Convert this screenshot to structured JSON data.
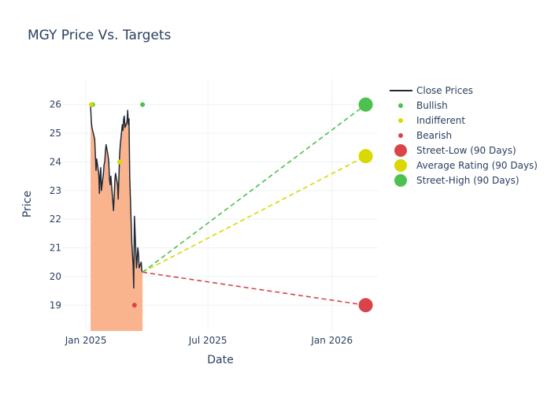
{
  "chart_data": {
    "type": "line",
    "title": "MGY Price Vs. Targets",
    "xlabel": "Date",
    "ylabel": "Price",
    "xlim": [
      "2024-11-28",
      "2026-03-10"
    ],
    "ylim": [
      18.1,
      26.9
    ],
    "x_ticks": [
      {
        "label": "Jan 2025",
        "date": "2025-01-01"
      },
      {
        "label": "Jul 2025",
        "date": "2025-07-01"
      },
      {
        "label": "Jan 2026",
        "date": "2026-01-01"
      }
    ],
    "y_ticks": [
      19,
      20,
      21,
      22,
      23,
      24,
      25,
      26
    ],
    "grid": true,
    "legend_position": "top-right",
    "colors": {
      "close": "#1f2a38",
      "area": "#f9b48e",
      "bullish": "#4cc150",
      "indifferent": "#d9d900",
      "bearish": "#d9444b",
      "street_low": "#d9444b",
      "average": "#d9d900",
      "street_high": "#4cc150"
    },
    "series": [
      {
        "name": "Close Prices",
        "points": [
          [
            "2025-01-08",
            25.95
          ],
          [
            "2025-01-09",
            25.4
          ],
          [
            "2025-01-10",
            25.2
          ],
          [
            "2025-01-13",
            24.9
          ],
          [
            "2025-01-14",
            24.8
          ],
          [
            "2025-01-15",
            24.3
          ],
          [
            "2025-01-16",
            23.7
          ],
          [
            "2025-01-17",
            24.1
          ],
          [
            "2025-01-20",
            23.6
          ],
          [
            "2025-01-21",
            22.9
          ],
          [
            "2025-01-22",
            23.5
          ],
          [
            "2025-01-23",
            23.8
          ],
          [
            "2025-01-24",
            23.0
          ],
          [
            "2025-01-27",
            23.6
          ],
          [
            "2025-01-28",
            23.9
          ],
          [
            "2025-01-29",
            24.0
          ],
          [
            "2025-01-30",
            24.4
          ],
          [
            "2025-01-31",
            24.6
          ],
          [
            "2025-02-03",
            24.2
          ],
          [
            "2025-02-04",
            24.0
          ],
          [
            "2025-02-05",
            23.4
          ],
          [
            "2025-02-06",
            23.2
          ],
          [
            "2025-02-07",
            23.5
          ],
          [
            "2025-02-10",
            22.6
          ],
          [
            "2025-02-11",
            22.3
          ],
          [
            "2025-02-12",
            22.8
          ],
          [
            "2025-02-13",
            23.4
          ],
          [
            "2025-02-14",
            23.6
          ],
          [
            "2025-02-17",
            23.2
          ],
          [
            "2025-02-18",
            22.7
          ],
          [
            "2025-02-19",
            23.5
          ],
          [
            "2025-02-20",
            24.2
          ],
          [
            "2025-02-21",
            24.6
          ],
          [
            "2025-02-24",
            25.3
          ],
          [
            "2025-02-25",
            25.1
          ],
          [
            "2025-02-26",
            25.5
          ],
          [
            "2025-02-27",
            25.6
          ],
          [
            "2025-02-28",
            25.2
          ],
          [
            "2025-03-03",
            25.4
          ],
          [
            "2025-03-04",
            25.8
          ],
          [
            "2025-03-05",
            25.3
          ],
          [
            "2025-03-06",
            25.5
          ],
          [
            "2025-03-07",
            23.5
          ],
          [
            "2025-03-10",
            21.2
          ],
          [
            "2025-03-11",
            20.8
          ],
          [
            "2025-03-12",
            20.4
          ],
          [
            "2025-03-13",
            19.6
          ],
          [
            "2025-03-14",
            22.1
          ],
          [
            "2025-03-17",
            20.3
          ],
          [
            "2025-03-18",
            20.6
          ],
          [
            "2025-03-19",
            21.0
          ],
          [
            "2025-03-20",
            20.8
          ],
          [
            "2025-03-21",
            20.3
          ],
          [
            "2025-03-24",
            20.5
          ],
          [
            "2025-03-25",
            20.2
          ],
          [
            "2025-03-26",
            20.15
          ]
        ]
      },
      {
        "name": "Bullish",
        "points": [
          [
            "2025-01-10",
            26.0
          ],
          [
            "2025-01-11",
            26.0
          ],
          [
            "2025-03-26",
            26.0
          ]
        ]
      },
      {
        "name": "Indifferent",
        "points": [
          [
            "2025-01-09",
            26.0
          ],
          [
            "2025-02-20",
            24.0
          ]
        ]
      },
      {
        "name": "Bearish",
        "points": [
          [
            "2025-03-14",
            19.0
          ]
        ]
      },
      {
        "name": "Street-Low (90 Days)",
        "points": [
          [
            "2026-02-20",
            19.0
          ]
        ]
      },
      {
        "name": "Average Rating (90 Days)",
        "points": [
          [
            "2026-02-20",
            24.2
          ]
        ]
      },
      {
        "name": "Street-High (90 Days)",
        "points": [
          [
            "2026-02-20",
            26.0
          ]
        ]
      }
    ],
    "target_lines": [
      {
        "series": "Street-Low (90 Days)",
        "from": [
          "2025-03-26",
          20.15
        ],
        "to": [
          "2026-02-20",
          19.0
        ]
      },
      {
        "series": "Average Rating (90 Days)",
        "from": [
          "2025-03-26",
          20.15
        ],
        "to": [
          "2026-02-20",
          24.2
        ]
      },
      {
        "series": "Street-High (90 Days)",
        "from": [
          "2025-03-26",
          20.15
        ],
        "to": [
          "2026-02-20",
          26.0
        ]
      }
    ]
  }
}
